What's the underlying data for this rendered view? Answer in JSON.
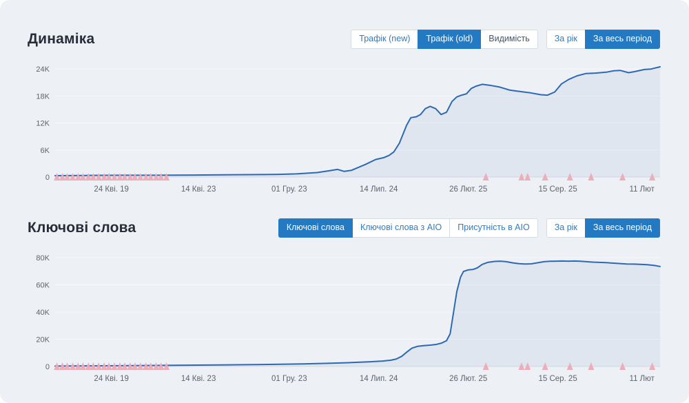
{
  "colors": {
    "panel_bg": "#edf0f5",
    "line": "#2d68b2",
    "area_fill": "rgba(45,104,178,0.07)",
    "marker": "#edaab5",
    "grid": "#f6f8fa",
    "baseline": "#d9dde3",
    "tick_text": "#5d646e",
    "title_text": "#262d38",
    "selected_button_bg": "#2379c2",
    "button_text_blue": "#2e7cc4",
    "button_text_dark": "#44566b"
  },
  "sections": [
    {
      "title": "Динаміка",
      "metric_buttons": [
        {
          "name": "traffic-new",
          "label": "Трафік (new)",
          "selected": false
        },
        {
          "name": "traffic-old",
          "label": "Трафік (old)",
          "selected": true
        },
        {
          "name": "visibility",
          "label": "Видимість",
          "selected": false,
          "variant": "dark"
        }
      ],
      "period_buttons": [
        {
          "name": "period-year",
          "label": "За рік",
          "selected": false
        },
        {
          "name": "period-all",
          "label": "За весь період",
          "selected": true
        }
      ]
    },
    {
      "title": "Ключові слова",
      "metric_buttons": [
        {
          "name": "keywords",
          "label": "Ключові слова",
          "selected": true
        },
        {
          "name": "keywords-aio",
          "label": "Ключові слова з AIO",
          "selected": false
        },
        {
          "name": "presence-aio",
          "label": "Присутність в AIO",
          "selected": false
        }
      ],
      "period_buttons": [
        {
          "name": "period-year",
          "label": "За рік",
          "selected": false
        },
        {
          "name": "period-all",
          "label": "За весь період",
          "selected": true
        }
      ]
    }
  ],
  "chart_data": [
    {
      "type": "area",
      "title": "Динаміка",
      "series_name": "Трафік (old)",
      "xlabel": "",
      "ylabel": "",
      "grid": true,
      "legend": "none",
      "ylim": [
        0,
        24.8
      ],
      "unit": "K",
      "y_ticks": [
        {
          "value": 24,
          "label": "24K"
        },
        {
          "value": 18,
          "label": "18K"
        },
        {
          "value": 12,
          "label": "12K"
        },
        {
          "value": 6,
          "label": "6K"
        },
        {
          "value": 0,
          "label": "0"
        }
      ],
      "x_ticks": [
        {
          "label": "24 Кві. 19",
          "pct": 9.3
        },
        {
          "label": "14 Кві. 23",
          "pct": 23.7
        },
        {
          "label": "01 Гру. 23",
          "pct": 38.7
        },
        {
          "label": "14 Лип. 24",
          "pct": 53.5
        },
        {
          "label": "26 Лют. 25",
          "pct": 68.3
        },
        {
          "label": "15 Сер. 25",
          "pct": 83.1
        },
        {
          "label": "11 Лют",
          "pct": 97.0
        }
      ],
      "points": [
        [
          0,
          0.3
        ],
        [
          5,
          0.35
        ],
        [
          11,
          0.4
        ],
        [
          17,
          0.4
        ],
        [
          23,
          0.45
        ],
        [
          28,
          0.5
        ],
        [
          34,
          0.55
        ],
        [
          37,
          0.6
        ],
        [
          39.9,
          0.7
        ],
        [
          43.3,
          1.0
        ],
        [
          45.3,
          1.4
        ],
        [
          46.7,
          1.7
        ],
        [
          47.8,
          1.25
        ],
        [
          49,
          1.5
        ],
        [
          51.3,
          2.8
        ],
        [
          53,
          3.9
        ],
        [
          54.3,
          4.3
        ],
        [
          55.2,
          4.8
        ],
        [
          56,
          5.6
        ],
        [
          56.9,
          7.5
        ],
        [
          58.1,
          11.5
        ],
        [
          58.8,
          13.2
        ],
        [
          59.7,
          13.4
        ],
        [
          60.4,
          13.9
        ],
        [
          61.2,
          15.2
        ],
        [
          62,
          15.7
        ],
        [
          62.9,
          15.2
        ],
        [
          63.8,
          13.9
        ],
        [
          64.7,
          14.4
        ],
        [
          65.6,
          16.8
        ],
        [
          66.4,
          17.8
        ],
        [
          67.2,
          18.2
        ],
        [
          68,
          18.5
        ],
        [
          68.8,
          19.7
        ],
        [
          69.6,
          20.2
        ],
        [
          70.6,
          20.6
        ],
        [
          71.8,
          20.4
        ],
        [
          73.5,
          20.0
        ],
        [
          75.2,
          19.3
        ],
        [
          76.9,
          19.0
        ],
        [
          78.6,
          18.7
        ],
        [
          80.3,
          18.3
        ],
        [
          81.4,
          18.2
        ],
        [
          82.6,
          18.9
        ],
        [
          83.7,
          20.7
        ],
        [
          84.9,
          21.7
        ],
        [
          86.3,
          22.5
        ],
        [
          87.7,
          23.0
        ],
        [
          89.3,
          23.1
        ],
        [
          91.1,
          23.3
        ],
        [
          92.3,
          23.6
        ],
        [
          93.4,
          23.7
        ],
        [
          94.8,
          23.2
        ],
        [
          95.7,
          23.4
        ],
        [
          97.4,
          23.9
        ],
        [
          98.5,
          24.0
        ],
        [
          100,
          24.5
        ]
      ],
      "event_markers_pct": [
        0.3,
        1.2,
        2,
        2.9,
        3.8,
        4.6,
        5.5,
        6.3,
        7.2,
        8.1,
        8.9,
        9.8,
        10.7,
        11.5,
        12.4,
        13.2,
        14.1,
        15,
        15.8,
        16.7,
        17.5,
        18.4,
        71.2,
        77.1,
        78.1,
        81,
        85.1,
        88.6,
        93.8,
        98.7
      ]
    },
    {
      "type": "area",
      "title": "Ключові слова",
      "series_name": "Ключові слова",
      "xlabel": "",
      "ylabel": "",
      "grid": true,
      "legend": "none",
      "ylim": [
        0,
        82
      ],
      "unit": "K",
      "y_ticks": [
        {
          "value": 80,
          "label": "80K"
        },
        {
          "value": 60,
          "label": "60K"
        },
        {
          "value": 40,
          "label": "40K"
        },
        {
          "value": 20,
          "label": "20K"
        },
        {
          "value": 0,
          "label": "0"
        }
      ],
      "x_ticks": [
        {
          "label": "24 Кві. 19",
          "pct": 9.3
        },
        {
          "label": "14 Кві. 23",
          "pct": 23.7
        },
        {
          "label": "01 Гру. 23",
          "pct": 38.7
        },
        {
          "label": "14 Лип. 24",
          "pct": 53.5
        },
        {
          "label": "26 Лют. 25",
          "pct": 68.3
        },
        {
          "label": "15 Сер. 25",
          "pct": 83.1
        },
        {
          "label": "11 Лют",
          "pct": 97.0
        }
      ],
      "points": [
        [
          0,
          0.3
        ],
        [
          9.1,
          0.5
        ],
        [
          18.2,
          0.8
        ],
        [
          27.3,
          1.1
        ],
        [
          35.3,
          1.5
        ],
        [
          41,
          1.9
        ],
        [
          45.6,
          2.4
        ],
        [
          49,
          2.9
        ],
        [
          51.8,
          3.4
        ],
        [
          54.1,
          4.0
        ],
        [
          55.5,
          4.6
        ],
        [
          56.4,
          5.5
        ],
        [
          57.3,
          7.5
        ],
        [
          58.1,
          10.5
        ],
        [
          59,
          13.5
        ],
        [
          59.9,
          14.8
        ],
        [
          60.9,
          15.3
        ],
        [
          62,
          15.7
        ],
        [
          63,
          16.2
        ],
        [
          63.9,
          17.2
        ],
        [
          64.7,
          19.0
        ],
        [
          65.3,
          24
        ],
        [
          65.8,
          38
        ],
        [
          66.4,
          55
        ],
        [
          67,
          65.5
        ],
        [
          67.5,
          69.8
        ],
        [
          68.3,
          71
        ],
        [
          69.1,
          71.3
        ],
        [
          69.8,
          72.5
        ],
        [
          70.6,
          75
        ],
        [
          71.5,
          76.5
        ],
        [
          72.6,
          77.2
        ],
        [
          73.6,
          77.4
        ],
        [
          74.6,
          77
        ],
        [
          75.6,
          76.2
        ],
        [
          76.7,
          75.5
        ],
        [
          77.7,
          75.3
        ],
        [
          78.7,
          75.4
        ],
        [
          79.7,
          76.2
        ],
        [
          80.8,
          77
        ],
        [
          81.8,
          77.3
        ],
        [
          82.8,
          77.4
        ],
        [
          83.8,
          77.5
        ],
        [
          84.9,
          77.4
        ],
        [
          85.9,
          77.5
        ],
        [
          86.9,
          77.3
        ],
        [
          87.9,
          77
        ],
        [
          88.9,
          76.7
        ],
        [
          91.1,
          76.3
        ],
        [
          93.4,
          75.6
        ],
        [
          94.5,
          75.3
        ],
        [
          95.7,
          75.2
        ],
        [
          96.8,
          75
        ],
        [
          97.9,
          74.8
        ],
        [
          99.1,
          74.2
        ],
        [
          100,
          73.5
        ]
      ],
      "event_markers_pct": [
        0.3,
        1.2,
        2,
        2.9,
        3.8,
        4.6,
        5.5,
        6.3,
        7.2,
        8.1,
        8.9,
        9.8,
        10.7,
        11.5,
        12.4,
        13.2,
        14.1,
        15,
        15.8,
        16.7,
        17.5,
        18.4,
        71.2,
        77.1,
        78.1,
        81,
        85.1,
        88.6,
        93.8,
        98.7
      ]
    }
  ]
}
